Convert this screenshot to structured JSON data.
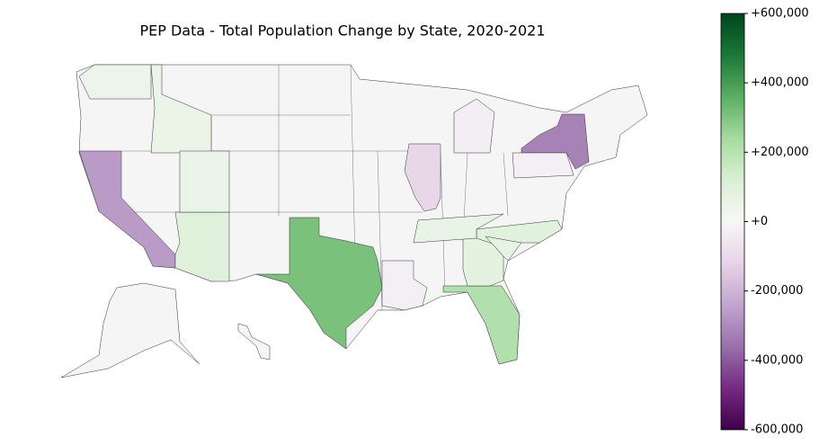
{
  "chart_data": {
    "type": "choropleth",
    "title": "PEP Data - Total Population Change by State, 2020-2021",
    "categories": [
      null,
      null,
      null,
      null,
      null,
      null,
      null,
      null,
      null,
      null,
      null,
      null,
      null,
      null,
      null,
      null
    ],
    "values": [
      -262000,
      310000,
      211000,
      -320000,
      -113000,
      98000,
      78000,
      94000,
      65000,
      53000,
      51000,
      60000,
      -27000,
      -32000,
      -27000,
      40000
    ],
    "colormap": [
      "#40004b",
      "#762a83",
      "#9970ab",
      "#c2a5cf",
      "#e7d4e8",
      "#f7f7f7",
      "#d9f0d3",
      "#a6dba0",
      "#5aae61",
      "#1b7837",
      "#00441b"
    ],
    "clim": [
      -600000,
      600000
    ],
    "cticks": [
      {
        "value": -600000,
        "label": "-600,000"
      },
      {
        "value": -400000,
        "label": "-400,000"
      },
      {
        "value": -200000,
        "label": "-200,000"
      },
      {
        "value": 0,
        "label": "+0"
      },
      {
        "value": 200000,
        "label": "+200,000"
      },
      {
        "value": 400000,
        "label": "+400,000"
      },
      {
        "value": 600000,
        "label": "+600,000"
      }
    ]
  }
}
